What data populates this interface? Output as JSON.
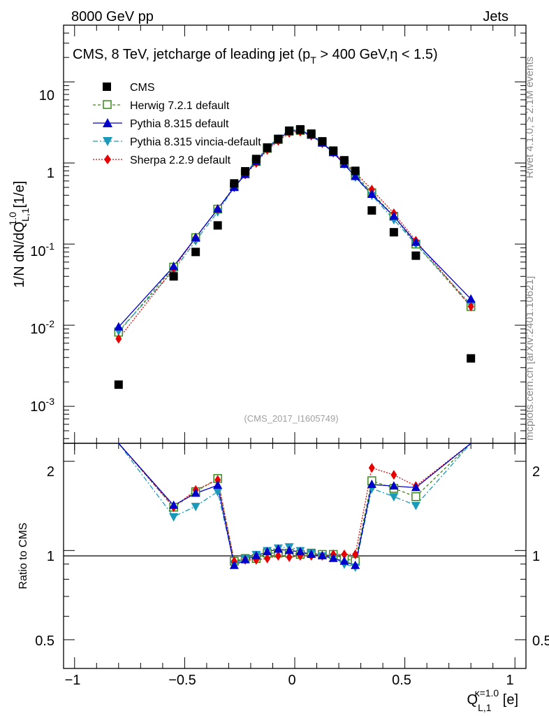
{
  "header": {
    "left": "8000 GeV pp",
    "right": "Jets"
  },
  "side": {
    "rivet": "Rivet 4.1.0, ≥ 2.1M events",
    "mcplots": "mcplots.cern.ch [arXiv:2401.10621]"
  },
  "axes": {
    "title_main": "CMS, 8 TeV, jetcharge of leading jet (p",
    "title_sub": "T",
    "title_rest": " > 400 GeV,η < 1.5)",
    "ylabel_main": "1/N dN/dQ",
    "ylabel_sup": "1.0",
    "ylabel_sub": "L,1",
    "ylabel_unit": " [1/e]",
    "ratio_ylabel": "Ratio to CMS",
    "xlabel_main": "Q",
    "xlabel_sup": "κ=1.0",
    "xlabel_sub": "L,1",
    "xlabel_unit": " [e]",
    "watermark": "(CMS_2017_I1605749)",
    "y_ticks": [
      {
        "base": "10",
        "exp": "-3"
      },
      {
        "base": "10",
        "exp": "-2"
      },
      {
        "base": "10",
        "exp": "-1"
      },
      {
        "base": "1",
        "exp": ""
      },
      {
        "base": "10",
        "exp": ""
      }
    ],
    "ratio_ticks": [
      "0.5",
      "1",
      "2"
    ],
    "x_ticks": [
      "−1",
      "−0.5",
      "0",
      "0.5",
      "1"
    ]
  },
  "colors": {
    "cms": "#000000",
    "herwig": "#3a8a1a",
    "pythia": "#0000cc",
    "vincia": "#1a9ab8",
    "sherpa": "#e80000"
  },
  "chart_data": {
    "type": "scatter",
    "title": "CMS, 8 TeV, jetcharge of leading jet (pT > 400 GeV, η < 1.5)",
    "xlabel": "Q_L,1^κ=1.0 [e]",
    "ylabel": "1/N dN/dQ_L,1^1.0 [1/e]",
    "xlim": [
      -1.05,
      1.05
    ],
    "ylim": [
      0.00035,
      50
    ],
    "yscale": "log",
    "ratio_ylim": [
      0.4,
      2.3
    ],
    "x": [
      -0.8,
      -0.55,
      -0.45,
      -0.35,
      -0.275,
      -0.225,
      -0.175,
      -0.125,
      -0.075,
      -0.025,
      0.025,
      0.075,
      0.125,
      0.175,
      0.225,
      0.275,
      0.35,
      0.45,
      0.55,
      0.8
    ],
    "series": [
      {
        "name": "CMS",
        "key": "cms",
        "values": [
          0.00185,
          0.04,
          0.08,
          0.17,
          0.56,
          0.79,
          1.12,
          1.55,
          1.98,
          2.5,
          2.6,
          2.3,
          1.85,
          1.42,
          1.08,
          0.8,
          0.26,
          0.14,
          0.072,
          0.0039
        ]
      },
      {
        "name": "Herwig 7.2.1 default",
        "key": "herwig",
        "values": [
          0.0082,
          0.052,
          0.12,
          0.27,
          0.51,
          0.74,
          1.04,
          1.51,
          1.94,
          2.45,
          2.52,
          2.25,
          1.8,
          1.38,
          1.02,
          0.72,
          0.43,
          0.22,
          0.1,
          0.017
        ],
        "ratio": [
          2.5,
          1.4,
          1.58,
          1.75,
          0.92,
          0.94,
          0.94,
          0.98,
          0.98,
          0.98,
          0.97,
          0.98,
          0.97,
          0.97,
          0.94,
          0.92,
          1.72,
          1.62,
          1.52,
          2.5
        ]
      },
      {
        "name": "Pythia 8.315 default",
        "key": "pythia",
        "values": [
          0.0095,
          0.053,
          0.12,
          0.27,
          0.5,
          0.72,
          1.04,
          1.5,
          1.96,
          2.47,
          2.5,
          2.2,
          1.76,
          1.34,
          0.96,
          0.68,
          0.41,
          0.22,
          0.105,
          0.021
        ],
        "ratio": [
          2.5,
          1.42,
          1.56,
          1.66,
          0.89,
          0.93,
          0.96,
          0.99,
          1.01,
          1.0,
          0.99,
          0.97,
          0.96,
          0.94,
          0.92,
          0.89,
          1.67,
          1.65,
          1.63,
          2.5
        ]
      },
      {
        "name": "Pythia 8.315 vincia-default",
        "key": "vincia",
        "values": [
          0.0085,
          0.047,
          0.11,
          0.25,
          0.5,
          0.74,
          1.07,
          1.57,
          2.02,
          2.55,
          2.57,
          2.24,
          1.78,
          1.35,
          0.97,
          0.67,
          0.4,
          0.2,
          0.1,
          0.018
        ],
        "ratio": [
          2.5,
          1.3,
          1.41,
          1.58,
          0.9,
          0.94,
          0.97,
          1.0,
          1.02,
          1.03,
          1.0,
          0.98,
          0.96,
          0.95,
          0.9,
          0.88,
          1.62,
          1.52,
          1.42,
          2.5
        ]
      },
      {
        "name": "Sherpa 2.2.9 default",
        "key": "sherpa",
        "values": [
          0.0068,
          0.05,
          0.12,
          0.27,
          0.5,
          0.72,
          1.0,
          1.45,
          1.87,
          2.35,
          2.43,
          2.17,
          1.75,
          1.34,
          1.03,
          0.76,
          0.47,
          0.24,
          0.11,
          0.017
        ],
        "ratio": [
          2.5,
          1.4,
          1.6,
          1.73,
          0.92,
          0.93,
          0.93,
          0.94,
          0.96,
          0.95,
          0.96,
          0.96,
          0.96,
          0.97,
          0.97,
          0.97,
          1.9,
          1.8,
          1.65,
          2.5
        ]
      }
    ]
  }
}
